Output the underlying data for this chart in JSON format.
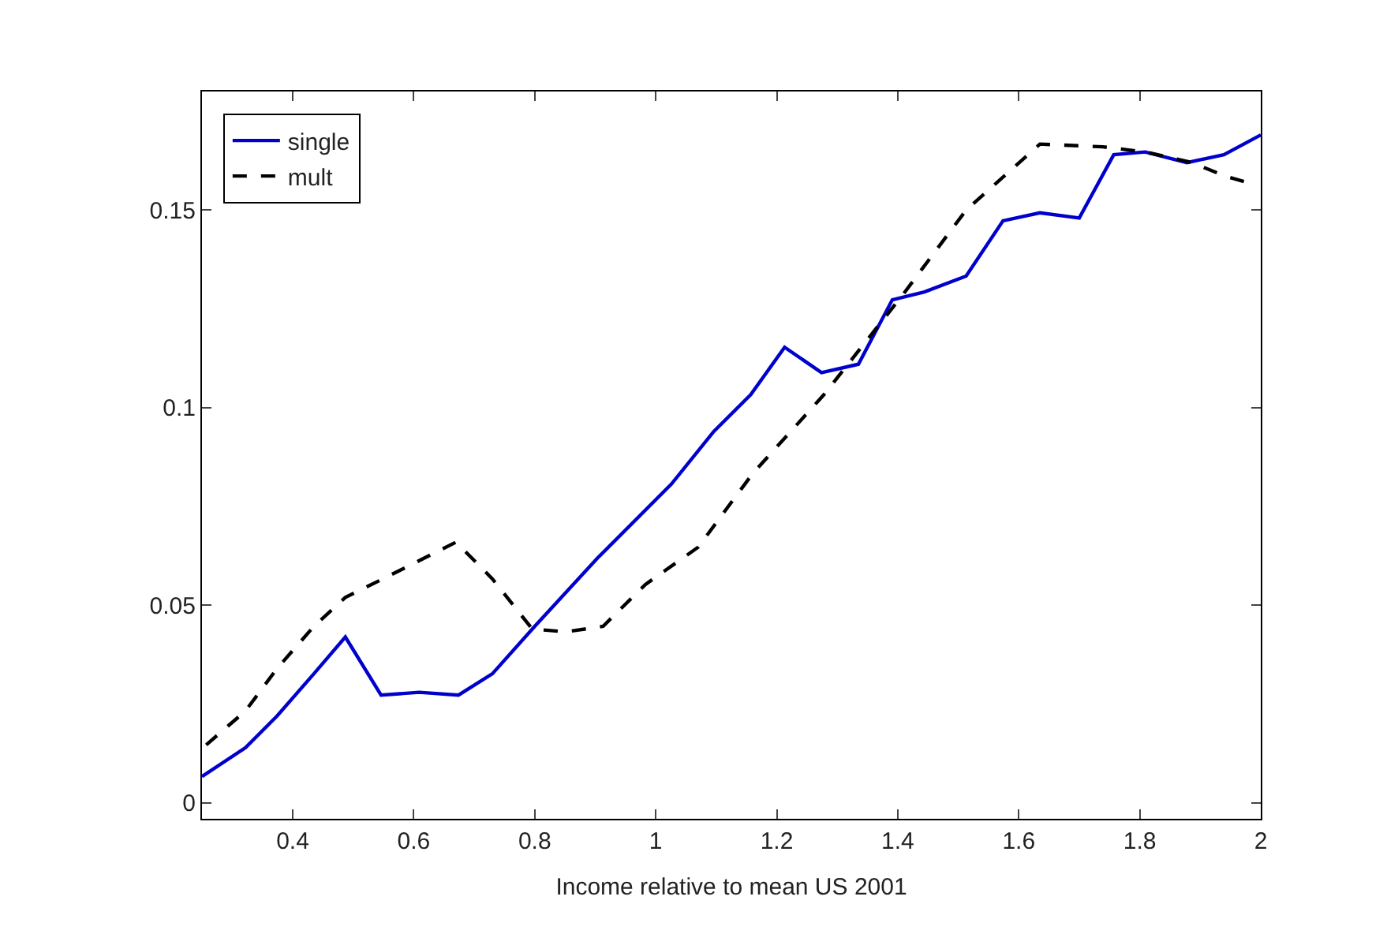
{
  "chart_data": {
    "type": "line",
    "xlabel": "Income relative to mean US 2001",
    "xlim": [
      0.25,
      2
    ],
    "xticks": [
      0.4,
      0.6,
      0.8,
      1,
      1.2,
      1.4,
      1.6,
      1.8,
      2
    ],
    "ylim": [
      -0.004,
      0.18
    ],
    "yticks": [
      0,
      0.05,
      0.1,
      0.15
    ],
    "legend": "top left",
    "marker": "none",
    "series": [
      {
        "name": "single",
        "color": "#0000cc",
        "line_style": "solid",
        "x": [
          0.25,
          0.322,
          0.374,
          0.435,
          0.487,
          0.546,
          0.609,
          0.674,
          0.73,
          0.8,
          0.904,
          1.026,
          1.096,
          1.157,
          1.213,
          1.274,
          1.335,
          1.391,
          1.444,
          1.513,
          1.574,
          1.635,
          1.7,
          1.757,
          1.809,
          1.878,
          1.939,
          2
        ],
        "values": [
          0.0067,
          0.014,
          0.022,
          0.0327,
          0.042,
          0.0273,
          0.028,
          0.0273,
          0.0327,
          0.0447,
          0.062,
          0.0807,
          0.094,
          0.1033,
          0.1153,
          0.1089,
          0.111,
          0.1273,
          0.1293,
          0.1333,
          0.1473,
          0.1493,
          0.148,
          0.164,
          0.1647,
          0.162,
          0.164,
          0.169
        ]
      },
      {
        "name": "mult",
        "color": "#000000",
        "line_style": "dashed",
        "x": [
          0.257,
          0.322,
          0.374,
          0.435,
          0.487,
          0.557,
          0.609,
          0.67,
          0.73,
          0.796,
          0.852,
          0.913,
          0.983,
          1.07,
          1.16,
          1.278,
          1.409,
          1.513,
          1.635,
          1.739,
          1.809,
          1.887,
          1.939,
          1.991
        ],
        "values": [
          0.0147,
          0.0233,
          0.034,
          0.0447,
          0.052,
          0.0573,
          0.0613,
          0.066,
          0.0567,
          0.044,
          0.0433,
          0.0447,
          0.0553,
          0.0647,
          0.0833,
          0.1033,
          0.1287,
          0.15,
          0.1667,
          0.166,
          0.1647,
          0.162,
          0.1587,
          0.1564
        ]
      }
    ]
  }
}
